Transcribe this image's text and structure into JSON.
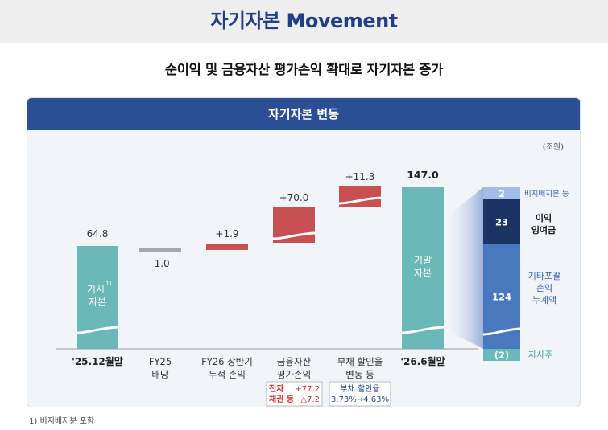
{
  "header": {
    "title": "자기자본 Movement",
    "subtitle": "순이익 및 금융자산 평가손익 확대로 자기자본 증가"
  },
  "panel": {
    "title": "자기자본 변동"
  },
  "footnote": "1) 비지배지분 포함",
  "colors": {
    "capital": "#6bb8b8",
    "dividend": "#a5a7aa",
    "increase": "#c85050",
    "header": "#2b4f94",
    "minority": "#9fbde6",
    "retained": "#1c3463",
    "aoci": "#4a78be",
    "treasury": "#6bb8b8"
  },
  "chart_data": {
    "type": "waterfall",
    "unit": "(조원)",
    "start": {
      "label": "'25.12월말",
      "value": 64.8,
      "value_label": "64.8",
      "bar_text": "기시",
      "bar_text2": "자본",
      "footnote_mark": "1)"
    },
    "steps": [
      {
        "label": "FY25",
        "label2": "배당",
        "value": -1.0,
        "value_label": "-1.0",
        "kind": "dividend"
      },
      {
        "label": "FY26 상반기",
        "label2": "누적 손익",
        "value": 1.9,
        "value_label": "+1.9",
        "kind": "increase"
      },
      {
        "label": "금융자산",
        "label2": "평가손익",
        "value": 70.0,
        "value_label": "+70.0",
        "kind": "increase"
      },
      {
        "label": "부채 할인율",
        "label2": "변동 등",
        "value": 11.3,
        "value_label": "+11.3",
        "kind": "increase"
      }
    ],
    "end": {
      "label": "'26.6월말",
      "value": 147.0,
      "value_label": "147.0",
      "bar_text": "기말",
      "bar_text2": "자본"
    },
    "breakdown": [
      {
        "name": "비지배지분 등",
        "value": 2,
        "value_label": "2",
        "key": "minority"
      },
      {
        "name": "이익",
        "name2": "잉여금",
        "value": 23,
        "value_label": "23",
        "key": "retained"
      },
      {
        "name": "기타포괄",
        "name2": "손익",
        "name3": "누계액",
        "value": 124,
        "value_label": "124",
        "key": "aoci"
      },
      {
        "name": "자사주",
        "value": -2,
        "value_label": "(2)",
        "key": "treasury"
      }
    ],
    "notes": [
      {
        "lines": [
          {
            "left": "전자",
            "right": "+77.2"
          },
          {
            "left": "채권 등",
            "right": "△7.2"
          }
        ],
        "style": "red"
      },
      {
        "lines": [
          {
            "text": "부채 할인율"
          },
          {
            "text": "3.73%→4.63%"
          }
        ],
        "style": "blue"
      }
    ]
  }
}
